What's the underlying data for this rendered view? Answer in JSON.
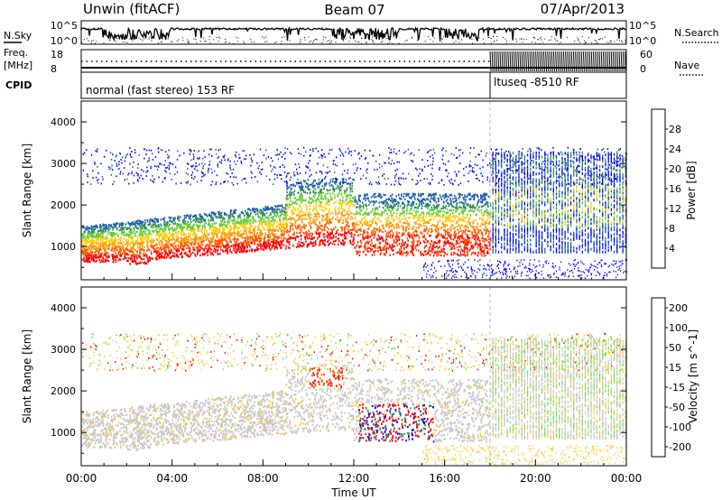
{
  "header": {
    "station": "Unwin (fitACF)",
    "beam": "Beam 07",
    "date": "07/Apr/2013"
  },
  "top_panels": {
    "nsky_label": "N.Sky",
    "nsearch_label": "N.Search",
    "nsky_ticks": [
      "10^5",
      "10^0"
    ],
    "nsearch_ticks": [
      "10^5",
      "10^0"
    ],
    "freq_label": "Freq.",
    "freq_unit": "[MHz]",
    "freq_ticks": [
      "18",
      "8"
    ],
    "nave_label": "Nave",
    "nave_ticks": [
      "60",
      "0"
    ],
    "cpid_label": "CPID",
    "cpid_segments": [
      {
        "name": "normal (fast stereo) 153 RF",
        "start_hour": 0,
        "end_hour": 18
      },
      {
        "name": "ltuseq -8510 RF",
        "start_hour": 18,
        "end_hour": 24
      }
    ]
  },
  "colors": {
    "power": [
      "#0000ff",
      "#1f5fa8",
      "#2e8b57",
      "#66cc33",
      "#ffcc00",
      "#ff9900",
      "#ff5a00",
      "#ff0000"
    ],
    "velocity": [
      "#ff0000",
      "#ff6600",
      "#ff9900",
      "#ffcc33",
      "#c8c8c8",
      "#77dd44",
      "#2e8b57",
      "#0000ff"
    ],
    "ground_scatter": "#c8c8c8"
  },
  "chart_data": [
    {
      "type": "heatmap",
      "panel": "power",
      "ylabel": "Slant Range [km]",
      "xlabel": "Time UT",
      "x_range_hours": [
        0,
        24
      ],
      "ylim": [
        200,
        4500
      ],
      "yticks": [
        1000,
        2000,
        3000,
        4000
      ],
      "xtick_labels": [
        "00:00",
        "04:00",
        "08:00",
        "12:00",
        "16:00",
        "20:00",
        "00:00"
      ],
      "colorbar": {
        "label": "Power [dB]",
        "tick_labels": [
          "4",
          "8",
          "12",
          "16",
          "20",
          "24",
          "28"
        ],
        "range": [
          0,
          32
        ]
      }
    },
    {
      "type": "heatmap",
      "panel": "velocity",
      "ylabel": "Slant Range [km]",
      "xlabel": "Time UT",
      "x_range_hours": [
        0,
        24
      ],
      "ylim": [
        200,
        4500
      ],
      "yticks": [
        1000,
        2000,
        3000,
        4000
      ],
      "xtick_labels": [
        "00:00",
        "04:00",
        "08:00",
        "12:00",
        "16:00",
        "20:00",
        "00:00"
      ],
      "colorbar": {
        "label": "Velocity [m s^-1]",
        "tick_labels": [
          "-200",
          "-100",
          "-50",
          "-15",
          "15",
          "50",
          "100",
          "200"
        ]
      }
    }
  ]
}
